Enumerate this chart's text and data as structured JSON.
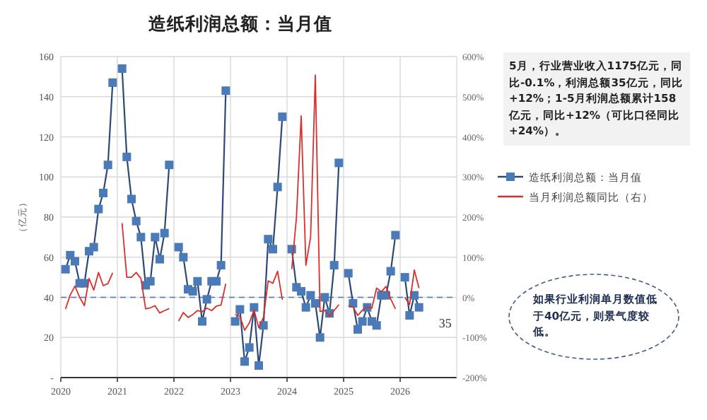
{
  "chart_data": {
    "type": "line",
    "title": "造纸利润总额：当月值",
    "ylabel": "（亿元）",
    "x": [
      "2020-02",
      "2020-03",
      "2020-04",
      "2020-05",
      "2020-06",
      "2020-07",
      "2020-08",
      "2020-09",
      "2020-10",
      "2020-11",
      "2020-12",
      "2021-02",
      "2021-03",
      "2021-04",
      "2021-05",
      "2021-06",
      "2021-07",
      "2021-08",
      "2021-09",
      "2021-10",
      "2021-11",
      "2021-12",
      "2022-02",
      "2022-03",
      "2022-04",
      "2022-05",
      "2022-06",
      "2022-07",
      "2022-08",
      "2022-09",
      "2022-10",
      "2022-11",
      "2022-12",
      "2023-02",
      "2023-03",
      "2023-04",
      "2023-05",
      "2023-06",
      "2023-07",
      "2023-08",
      "2023-09",
      "2023-10",
      "2023-11",
      "2023-12",
      "2024-02",
      "2024-03",
      "2024-04",
      "2024-05",
      "2024-06",
      "2024-07",
      "2024-08",
      "2024-09",
      "2024-10",
      "2024-11",
      "2024-12",
      "2025-02",
      "2025-03",
      "2025-04",
      "2025-05",
      "2025-06",
      "2025-07",
      "2025-08",
      "2025-09",
      "2025-10",
      "2025-11",
      "2025-12",
      "2026-02",
      "2026-03",
      "2026-04",
      "2026-05"
    ],
    "series": [
      {
        "name": "造纸利润总额：当月值",
        "color": "#4a7ab8",
        "marker": "square",
        "values": [
          54,
          61,
          58,
          47,
          47,
          63,
          65,
          84,
          92,
          106,
          147,
          154,
          110,
          89,
          78,
          70,
          46,
          48,
          70,
          59,
          72,
          106,
          65,
          60,
          44,
          43,
          48,
          28,
          39,
          48,
          48,
          56,
          143,
          28,
          34,
          8,
          15,
          35,
          6,
          26,
          69,
          64,
          95,
          130,
          64,
          45,
          43,
          35,
          41,
          37,
          20,
          40,
          32,
          56,
          107,
          52,
          37,
          24,
          28,
          35,
          28,
          26,
          41,
          41,
          53,
          71,
          50,
          31,
          41,
          35
        ]
      },
      {
        "name": "当月利润总额同比（右）",
        "color": "#d9302c",
        "axis": "y2",
        "marker": "none",
        "values": [
          -29,
          6,
          28,
          0,
          -21,
          47,
          18,
          62,
          29,
          34,
          61,
          185,
          50,
          50,
          62,
          47,
          -29,
          -26,
          -21,
          -39,
          -33,
          -28,
          -59,
          -38,
          -50,
          -43,
          -33,
          -36,
          -27,
          -33,
          -22,
          -19,
          34,
          -43,
          -47,
          -82,
          -64,
          -32,
          -76,
          -50,
          41,
          35,
          65,
          -6,
          70,
          200,
          452,
          80,
          150,
          554,
          -35,
          -33,
          -47,
          -33,
          -18,
          -21,
          -24,
          -45,
          -32,
          -24,
          -27,
          23,
          14,
          27,
          -4,
          -29,
          0,
          -18,
          68,
          23
        ]
      }
    ],
    "xlim": [
      "2020-01",
      "2027-01"
    ],
    "xticks": [
      "2020",
      "2021",
      "2022",
      "2023",
      "2024",
      "2025",
      "2026"
    ],
    "ylim": [
      0,
      160
    ],
    "yticks": [
      {
        "value": 0,
        "label": "-"
      },
      20,
      40,
      60,
      80,
      100,
      120,
      140,
      160
    ],
    "y2lim": [
      -200,
      600
    ],
    "y2ticks": [
      {
        "value": -200,
        "label": "-200%"
      },
      {
        "value": -100,
        "label": "-100%"
      },
      {
        "value": 0,
        "label": "0%"
      },
      {
        "value": 100,
        "label": "100%"
      },
      {
        "value": 200,
        "label": "200%"
      },
      {
        "value": 300,
        "label": "300%"
      },
      {
        "value": 400,
        "label": "400%"
      },
      {
        "value": 500,
        "label": "500%"
      },
      {
        "value": 600,
        "label": "600%"
      }
    ],
    "ref_lines": [
      {
        "axis": "y2",
        "value": 0,
        "color": "#4a7ab8",
        "line_style": "dashed"
      }
    ],
    "grid": true,
    "legend": "right",
    "annotations": [
      "5月，行业营业收入1175亿元，同比-0.1%，利润总额35亿元，同比+12%；1-5月利润总额累计158亿元，同比+12%（可比口径同比+24%）。",
      "如果行业利润单月数值低于40亿元，则景气度较低。",
      {
        "text": "35",
        "x": "2026-05",
        "y": 35
      }
    ]
  }
}
